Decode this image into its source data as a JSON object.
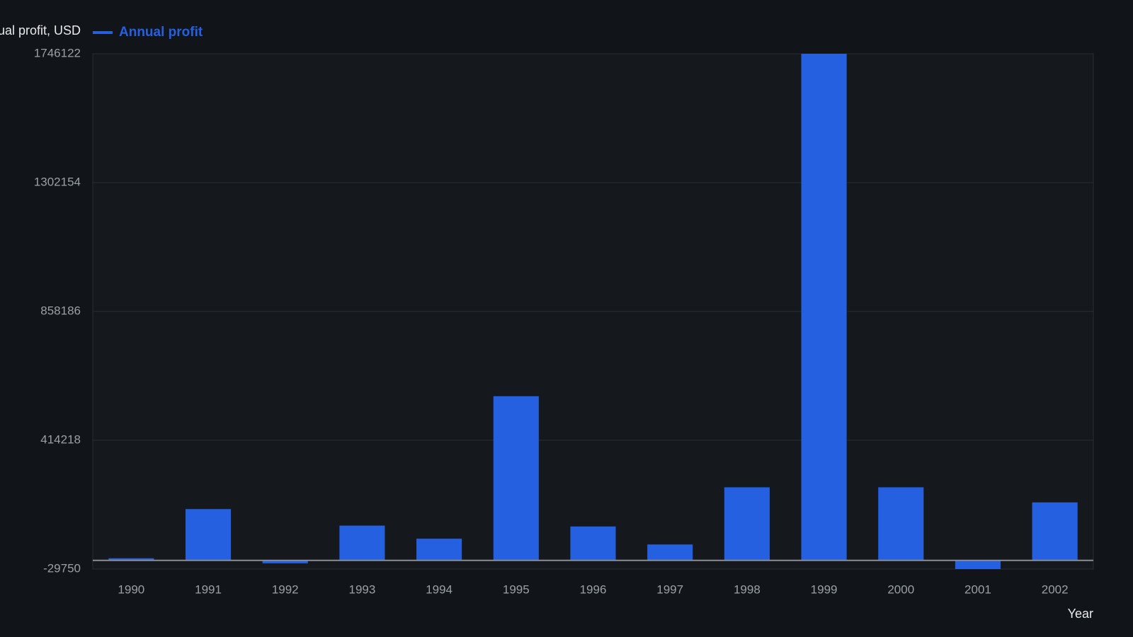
{
  "chart_data": {
    "type": "bar",
    "y_label": "Annual profit, USD",
    "x_label": "Year",
    "categories": [
      "1990",
      "1991",
      "1992",
      "1993",
      "1994",
      "1995",
      "1996",
      "1997",
      "1998",
      "1999",
      "2000",
      "2001",
      "2002"
    ],
    "series": [
      {
        "name": "Annual profit",
        "color": "#2560e0",
        "values": [
          7500,
          177000,
          -10000,
          120000,
          75000,
          566000,
          117000,
          55000,
          252000,
          1746122,
          252000,
          -29750,
          200000
        ]
      }
    ],
    "ylim": [
      -29750,
      1746122
    ],
    "yticks": [
      -29750,
      414218,
      858186,
      1302154,
      1746122
    ],
    "grid": true
  }
}
